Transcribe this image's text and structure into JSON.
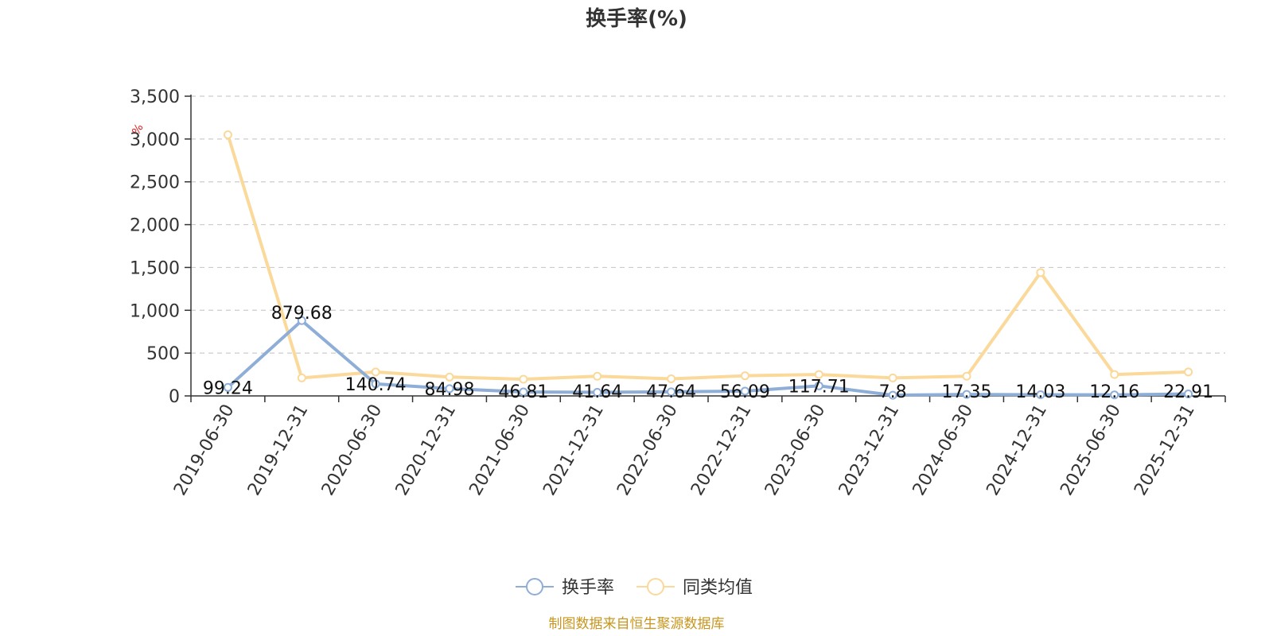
{
  "title": "换手率(%)",
  "unit_label": "%",
  "source_note": "制图数据来自恒生聚源数据库",
  "chart_data": {
    "type": "line",
    "title": "换手率(%)",
    "categories": [
      "2019-06-30",
      "2019-12-31",
      "2020-06-30",
      "2020-12-31",
      "2021-06-30",
      "2021-12-31",
      "2022-06-30",
      "2022-12-31",
      "2023-06-30",
      "2023-12-31",
      "2024-06-30",
      "2024-12-31",
      "2025-06-30",
      "2025-12-31"
    ],
    "ylim": [
      0,
      3500
    ],
    "yticks": [
      0,
      500,
      1000,
      1500,
      2000,
      2500,
      3000,
      3500
    ],
    "ytick_labels": [
      "0",
      "500",
      "1,000",
      "1,500",
      "2,000",
      "2,500",
      "3,000",
      "3,500"
    ],
    "grid": true,
    "legend_position": "bottom-center",
    "series": [
      {
        "name": "换手率",
        "color": "#8eaed8",
        "values": [
          99.24,
          879.68,
          140.74,
          84.98,
          46.81,
          41.64,
          47.64,
          56.09,
          117.71,
          7.8,
          17.35,
          14.03,
          12.16,
          22.91
        ],
        "labels": [
          "99.24",
          "879.68",
          "140.74",
          "84.98",
          "46.81",
          "41.64",
          "47.64",
          "56.09",
          "117.71",
          "7.8",
          "17.35",
          "14.03",
          "12.16",
          "22.91"
        ]
      },
      {
        "name": "同类均值",
        "color": "#fad99a",
        "values": [
          3050,
          210,
          280,
          220,
          195,
          230,
          200,
          235,
          250,
          210,
          230,
          1440,
          250,
          280
        ]
      }
    ]
  }
}
